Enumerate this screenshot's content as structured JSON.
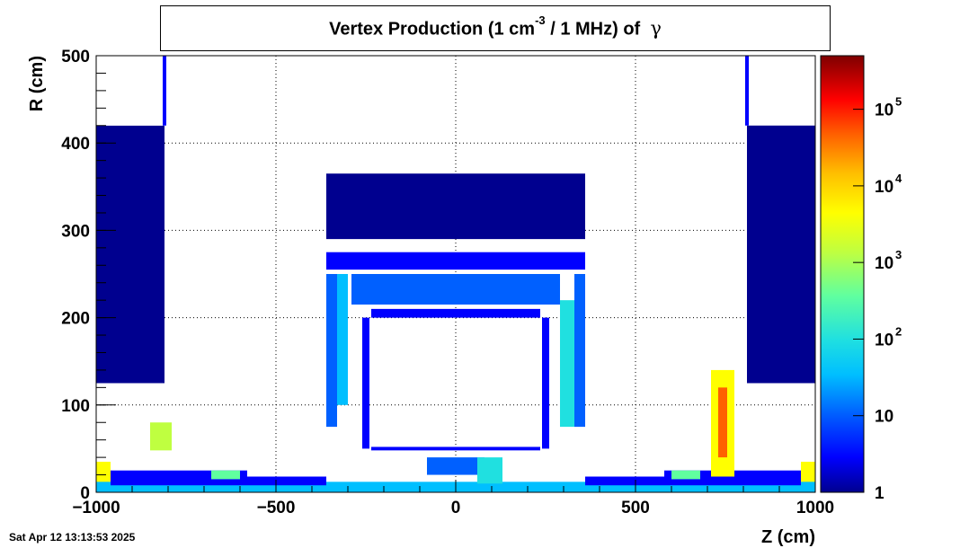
{
  "title_main": "Vertex Production (1 cm",
  "title_exp": "-3",
  "title_rest": "/ 1 MHz) of",
  "title_particle": "γ",
  "timestamp": "Sat Apr 12 13:13:53 2025",
  "colors": {
    "palette": [
      "#00008f",
      "#0000ff",
      "#0060ff",
      "#00bfff",
      "#20e0e0",
      "#60ff9f",
      "#bfff40",
      "#ffff00",
      "#ffbf00",
      "#ff6000",
      "#ff0000",
      "#b00000",
      "#7f0000"
    ]
  },
  "chart_data": {
    "type": "heatmap",
    "title": "Vertex Production (1 cm-3 / 1 MHz) of γ",
    "xlabel": "Z (cm)",
    "ylabel": "R (cm)",
    "xlim": [
      -1000,
      1000
    ],
    "ylim": [
      0,
      500
    ],
    "x_ticks": [
      -1000,
      -500,
      0,
      500,
      1000
    ],
    "x_tick_labels": [
      "−1000",
      "−500",
      "0",
      "500",
      "1000"
    ],
    "y_ticks": [
      0,
      100,
      200,
      300,
      400,
      500
    ],
    "y_tick_labels": [
      "0",
      "100",
      "200",
      "300",
      "400",
      "500"
    ],
    "grid": true,
    "colorbar": {
      "scale": "log",
      "range": [
        1,
        500000
      ],
      "labels": [
        {
          "value": 1,
          "base": "1",
          "exp": ""
        },
        {
          "value": 10,
          "base": "10",
          "exp": ""
        },
        {
          "value": 100,
          "base": "10",
          "exp": "2"
        },
        {
          "value": 1000,
          "base": "10",
          "exp": "3"
        },
        {
          "value": 10000,
          "base": "10",
          "exp": "4"
        },
        {
          "value": 100000,
          "base": "10",
          "exp": "5"
        }
      ]
    },
    "regions": [
      {
        "z": [
          -1000,
          -810
        ],
        "r": [
          125,
          420
        ],
        "value": 1.5
      },
      {
        "z": [
          -1000,
          -810
        ],
        "r": [
          420,
          500
        ],
        "value": 0
      },
      {
        "z": [
          -815,
          -805
        ],
        "r": [
          420,
          500
        ],
        "value": 2
      },
      {
        "z": [
          810,
          1000
        ],
        "r": [
          125,
          420
        ],
        "value": 1.5
      },
      {
        "z": [
          805,
          815
        ],
        "r": [
          420,
          500
        ],
        "value": 2
      },
      {
        "z": [
          -360,
          360
        ],
        "r": [
          290,
          365
        ],
        "value": 1.5
      },
      {
        "z": [
          -360,
          360
        ],
        "r": [
          255,
          275
        ],
        "value": 4
      },
      {
        "z": [
          -290,
          290
        ],
        "r": [
          215,
          250
        ],
        "value": 8
      },
      {
        "z": [
          -360,
          -330
        ],
        "r": [
          75,
          250
        ],
        "value": 10
      },
      {
        "z": [
          330,
          360
        ],
        "r": [
          75,
          250
        ],
        "value": 10
      },
      {
        "z": [
          -330,
          -300
        ],
        "r": [
          100,
          250
        ],
        "value": 40
      },
      {
        "z": [
          290,
          330
        ],
        "r": [
          75,
          220
        ],
        "value": 80
      },
      {
        "z": [
          -260,
          -240
        ],
        "r": [
          50,
          200
        ],
        "value": 4
      },
      {
        "z": [
          240,
          260
        ],
        "r": [
          50,
          200
        ],
        "value": 4
      },
      {
        "z": [
          -235,
          235
        ],
        "r": [
          200,
          210
        ],
        "value": 5
      },
      {
        "z": [
          -235,
          235
        ],
        "r": [
          48,
          52
        ],
        "value": 5
      },
      {
        "z": [
          -1000,
          -960
        ],
        "r": [
          3,
          35
        ],
        "value": 3000
      },
      {
        "z": [
          960,
          1000
        ],
        "r": [
          3,
          35
        ],
        "value": 3000
      },
      {
        "z": [
          -1000,
          1000
        ],
        "r": [
          0,
          12
        ],
        "value": 30
      },
      {
        "z": [
          -960,
          -580
        ],
        "r": [
          8,
          25
        ],
        "value": 3
      },
      {
        "z": [
          580,
          960
        ],
        "r": [
          8,
          25
        ],
        "value": 3
      },
      {
        "z": [
          -580,
          -360
        ],
        "r": [
          8,
          18
        ],
        "value": 5
      },
      {
        "z": [
          360,
          580
        ],
        "r": [
          8,
          18
        ],
        "value": 5
      },
      {
        "z": [
          -850,
          -790
        ],
        "r": [
          48,
          80
        ],
        "value": 600
      },
      {
        "z": [
          710,
          775
        ],
        "r": [
          18,
          140
        ],
        "value": 2000
      },
      {
        "z": [
          730,
          755
        ],
        "r": [
          40,
          120
        ],
        "value": 20000
      },
      {
        "z": [
          -680,
          -600
        ],
        "r": [
          15,
          25
        ],
        "value": 150
      },
      {
        "z": [
          600,
          680
        ],
        "r": [
          15,
          25
        ],
        "value": 150
      },
      {
        "z": [
          -80,
          80
        ],
        "r": [
          20,
          40
        ],
        "value": 15
      },
      {
        "z": [
          60,
          130
        ],
        "r": [
          10,
          40
        ],
        "value": 60
      }
    ]
  }
}
